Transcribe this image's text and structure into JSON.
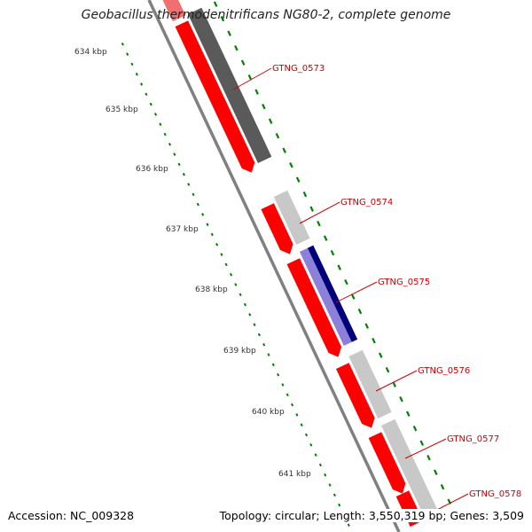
{
  "map": {
    "title": "Geobacillus thermodenitrificans NG80-2, complete genome",
    "accession": "Accession: NC_009328",
    "summary": "Topology: circular; Length: 3,550,319 bp; Genes: 3,509"
  },
  "colors": {
    "plus_strand": "#ff0000",
    "minus_strand": "#ff0000",
    "dark_gene": "#5a5a5a",
    "light_gene": "#c8c8c8",
    "blue_gene": "#00007a",
    "blue_gene_light": "#8c80d8",
    "backbone": "#808080",
    "tick": "#008000",
    "gene_label": "#cc0000",
    "kbp_label": "#333333"
  },
  "kbp_labels": [
    "634 kbp",
    "635 kbp",
    "636 kbp",
    "637 kbp",
    "638 kbp",
    "639 kbp",
    "640 kbp",
    "641 kbp"
  ],
  "genes": [
    {
      "name": "GTNG_0573"
    },
    {
      "name": "GTNG_0574"
    },
    {
      "name": "GTNG_0575"
    },
    {
      "name": "GTNG_0576"
    },
    {
      "name": "GTNG_0577"
    },
    {
      "name": "GTNG_0578"
    }
  ]
}
